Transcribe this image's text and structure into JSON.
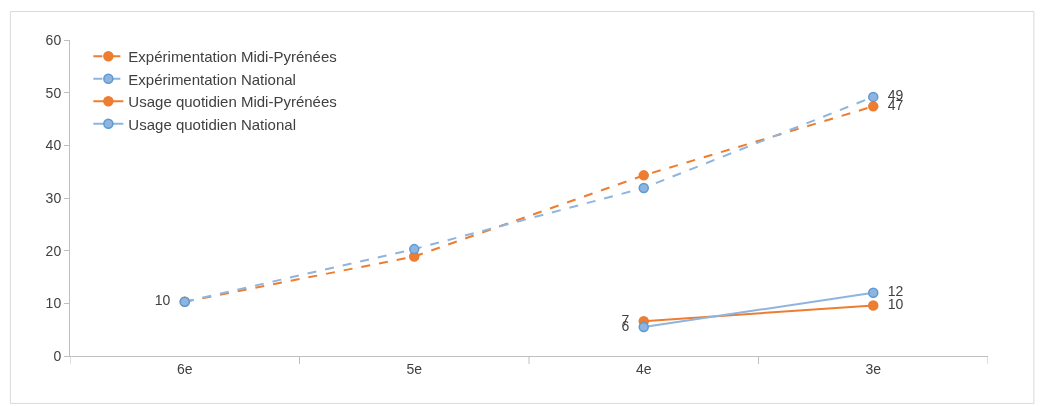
{
  "chart_data": {
    "type": "line",
    "categories": [
      "6e",
      "5e",
      "4e",
      "3e"
    ],
    "series": [
      {
        "name": "Expérimentation Midi-Pyrénées",
        "color": "#ed7d31",
        "line_style": "dashed",
        "values": [
          10.3,
          18.9,
          34.3,
          47.4
        ],
        "value_labels": [
          "10",
          null,
          null,
          "47"
        ]
      },
      {
        "name": "Expérimentation National",
        "color": "#8fb4de",
        "line_style": "dashed",
        "values": [
          10.3,
          20.3,
          31.9,
          49.2
        ],
        "value_labels": [
          null,
          null,
          null,
          "49"
        ]
      },
      {
        "name": "Usage quotidien Midi-Pyrénées",
        "color": "#ed7d31",
        "line_style": "solid",
        "values": [
          null,
          null,
          6.6,
          9.6
        ],
        "value_labels": [
          null,
          null,
          "7",
          "10"
        ]
      },
      {
        "name": "Usage quotidien National",
        "color": "#8fb4de",
        "line_style": "solid",
        "values": [
          null,
          null,
          5.5,
          12.0
        ],
        "value_labels": [
          null,
          null,
          "6",
          "12"
        ]
      }
    ],
    "ylim": [
      0,
      60
    ],
    "yticks": [
      0,
      10,
      20,
      30,
      40,
      50,
      60
    ],
    "grid": false,
    "legend": "top left",
    "marker": "circle"
  }
}
